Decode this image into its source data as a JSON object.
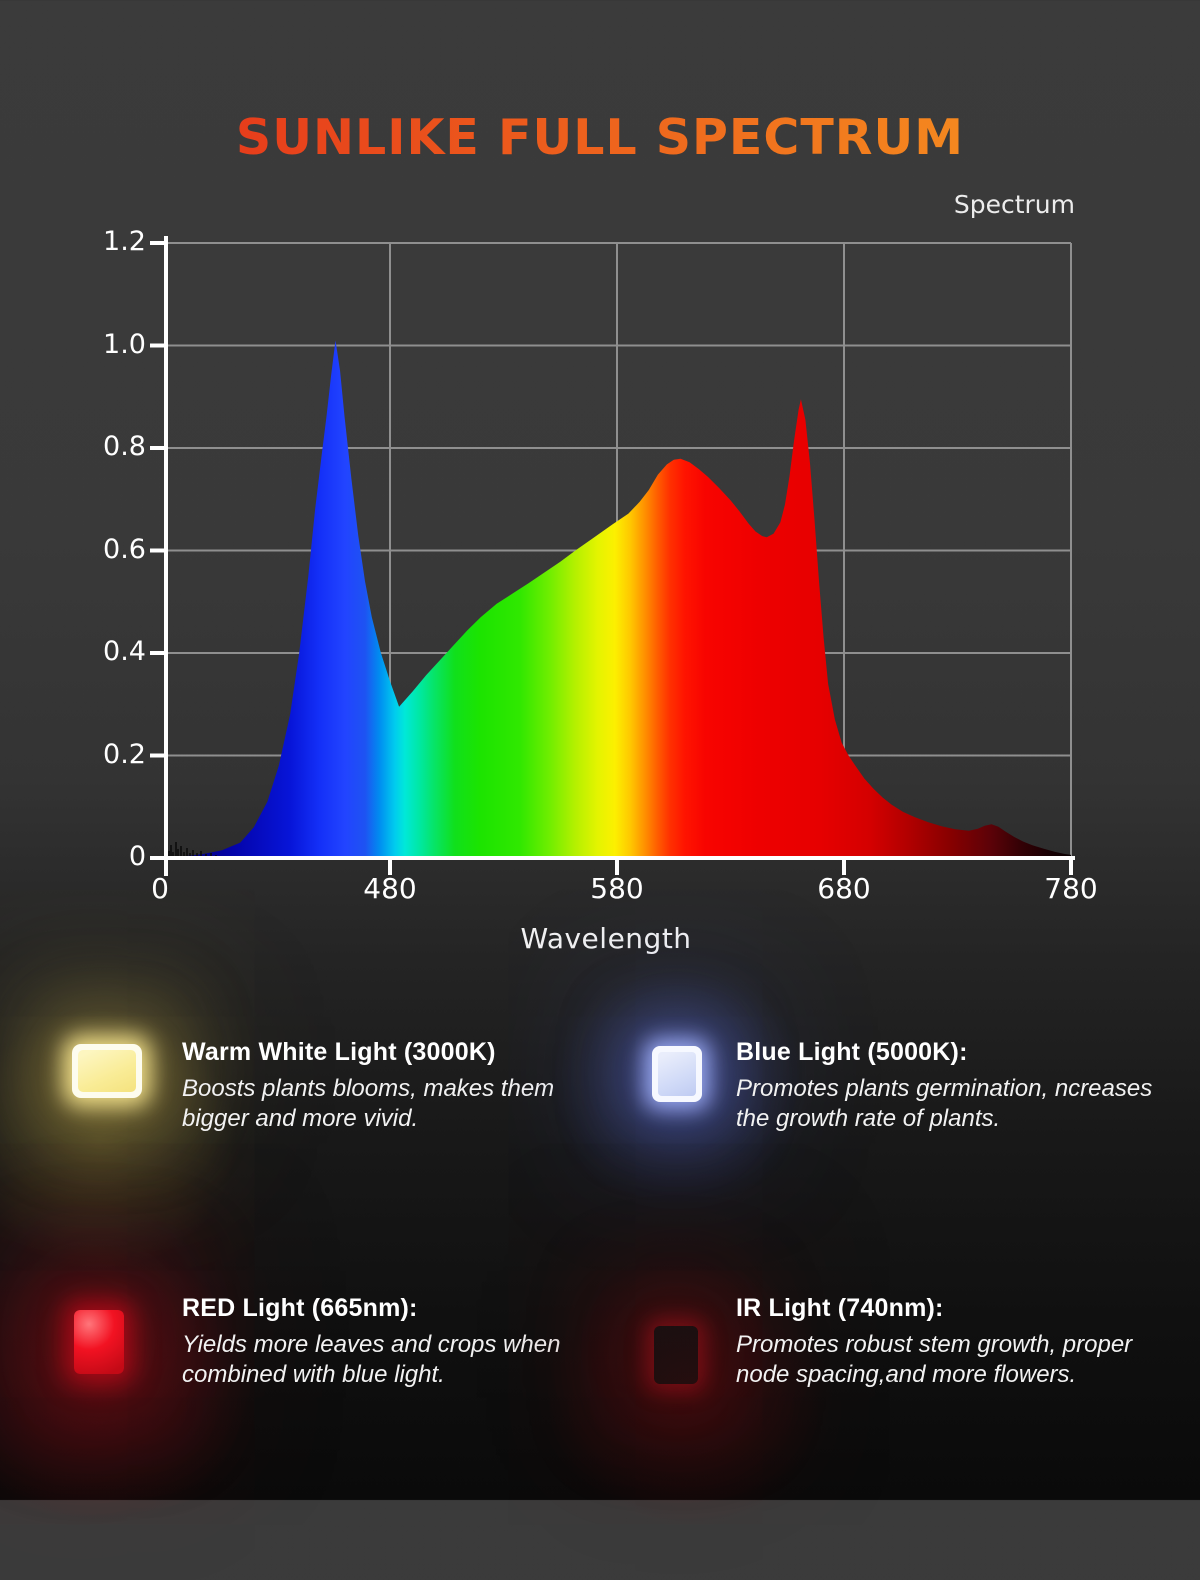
{
  "title": "SUNLIKE FULL SPECTRUM",
  "title_colors": {
    "left": "#e63b1b",
    "right": "#f58a1f"
  },
  "chart": {
    "legend_label": "Spectrum",
    "x_axis_title": "Wavelength",
    "x_ticks": [
      {
        "label": "0",
        "nm": null
      },
      {
        "label": "480",
        "nm": 480
      },
      {
        "label": "580",
        "nm": 580
      },
      {
        "label": "680",
        "nm": 680
      },
      {
        "label": "780",
        "nm": 780
      }
    ],
    "y_ticks": [
      {
        "label": "0",
        "value": 0
      },
      {
        "label": "0.2",
        "value": 0.2
      },
      {
        "label": "0.4",
        "value": 0.4
      },
      {
        "label": "0.6",
        "value": 0.6
      },
      {
        "label": "0.8",
        "value": 0.8
      },
      {
        "label": "1.0",
        "value": 1.0
      },
      {
        "label": "1.2",
        "value": 1.2
      }
    ]
  },
  "chart_data": {
    "type": "area",
    "title": "Spectrum",
    "xlabel": "Wavelength",
    "x_unit": "nm",
    "xlim": [
      380,
      780
    ],
    "ylim": [
      0,
      1.2
    ],
    "grid": true,
    "legend_position": "top-right",
    "x": [
      381,
      390,
      398,
      406,
      414,
      420,
      426,
      431,
      436,
      440,
      444,
      447,
      450,
      452,
      454,
      456,
      458,
      460,
      463,
      466,
      469,
      472,
      476,
      480,
      484,
      490,
      496,
      502,
      508,
      514,
      520,
      527,
      534,
      541,
      548,
      555,
      562,
      570,
      578,
      585,
      590,
      594,
      598,
      602,
      605,
      608,
      612,
      616,
      620,
      625,
      630,
      634,
      638,
      641,
      644,
      646,
      649,
      652,
      654,
      656,
      658,
      660,
      661,
      663,
      665,
      667,
      669,
      671,
      673,
      676,
      679,
      682,
      685,
      689,
      693,
      697,
      701,
      706,
      711,
      717,
      723,
      729,
      735,
      739,
      742,
      745,
      748,
      751,
      755,
      759,
      763,
      768,
      773,
      777,
      780
    ],
    "y": [
      0.002,
      0.004,
      0.008,
      0.015,
      0.03,
      0.06,
      0.11,
      0.18,
      0.28,
      0.4,
      0.55,
      0.68,
      0.79,
      0.86,
      0.94,
      1.01,
      0.95,
      0.86,
      0.74,
      0.63,
      0.54,
      0.47,
      0.4,
      0.345,
      0.295,
      0.325,
      0.357,
      0.386,
      0.415,
      0.444,
      0.47,
      0.496,
      0.516,
      0.536,
      0.557,
      0.578,
      0.601,
      0.626,
      0.651,
      0.672,
      0.695,
      0.718,
      0.748,
      0.768,
      0.777,
      0.779,
      0.772,
      0.759,
      0.744,
      0.722,
      0.698,
      0.676,
      0.652,
      0.637,
      0.628,
      0.626,
      0.633,
      0.655,
      0.69,
      0.745,
      0.815,
      0.875,
      0.895,
      0.855,
      0.77,
      0.66,
      0.54,
      0.43,
      0.34,
      0.27,
      0.225,
      0.2,
      0.18,
      0.155,
      0.135,
      0.118,
      0.104,
      0.09,
      0.08,
      0.07,
      0.062,
      0.056,
      0.053,
      0.057,
      0.063,
      0.066,
      0.061,
      0.052,
      0.041,
      0.032,
      0.025,
      0.018,
      0.012,
      0.008,
      0.006
    ],
    "peaks": {
      "blue_peak": {
        "nm": 455,
        "value": 1.0
      },
      "broad_peak": {
        "nm": 600,
        "value": 0.78
      },
      "red_peak": {
        "nm": 660,
        "value": 0.9
      },
      "dip_cyan": {
        "nm": 485,
        "value": 0.29
      },
      "dip_red": {
        "nm": 645,
        "value": 0.62
      },
      "ir_bump": {
        "nm": 745,
        "value": 0.07
      }
    },
    "color_stops": [
      {
        "pos": 0.0,
        "color": "#020060"
      },
      {
        "pos": 0.071,
        "color": "#0403a8"
      },
      {
        "pos": 0.137,
        "color": "#0715d8"
      },
      {
        "pos": 0.17,
        "color": "#1430f8"
      },
      {
        "pos": 0.198,
        "color": "#2244ff"
      },
      {
        "pos": 0.22,
        "color": "#1e53f2"
      },
      {
        "pos": 0.236,
        "color": "#008df0"
      },
      {
        "pos": 0.253,
        "color": "#00ccee"
      },
      {
        "pos": 0.264,
        "color": "#00e8d8"
      },
      {
        "pos": 0.281,
        "color": "#00e8a0"
      },
      {
        "pos": 0.297,
        "color": "#07e465"
      },
      {
        "pos": 0.319,
        "color": "#10e01c"
      },
      {
        "pos": 0.347,
        "color": "#1ce400"
      },
      {
        "pos": 0.391,
        "color": "#30e800"
      },
      {
        "pos": 0.424,
        "color": "#70ee00"
      },
      {
        "pos": 0.452,
        "color": "#b4f000"
      },
      {
        "pos": 0.477,
        "color": "#e4f400"
      },
      {
        "pos": 0.496,
        "color": "#fcf000"
      },
      {
        "pos": 0.513,
        "color": "#ffc800"
      },
      {
        "pos": 0.529,
        "color": "#ff9000"
      },
      {
        "pos": 0.544,
        "color": "#ff5a00"
      },
      {
        "pos": 0.557,
        "color": "#ff3000"
      },
      {
        "pos": 0.573,
        "color": "#ff1400"
      },
      {
        "pos": 0.596,
        "color": "#f80400"
      },
      {
        "pos": 0.656,
        "color": "#ee0000"
      },
      {
        "pos": 0.723,
        "color": "#e60000"
      },
      {
        "pos": 0.778,
        "color": "#d40000"
      },
      {
        "pos": 0.822,
        "color": "#b00000"
      },
      {
        "pos": 0.866,
        "color": "#880000"
      },
      {
        "pos": 0.911,
        "color": "#5c0208"
      },
      {
        "pos": 0.944,
        "color": "#340105"
      },
      {
        "pos": 0.977,
        "color": "#180003"
      },
      {
        "pos": 1.0,
        "color": "#0a0002"
      }
    ]
  },
  "features": [
    {
      "title": "Warm White Light (3000K)",
      "desc": "Boosts plants blooms, makes them\nbigger and more vivid.",
      "chip": "warm-white"
    },
    {
      "title": "Blue Light (5000K):",
      "desc": "Promotes plants germination, ncreases\nthe growth rate of plants.",
      "chip": "blue"
    },
    {
      "title": "RED Light (665nm):",
      "desc": "Yields more leaves and crops when\ncombined with blue light.",
      "chip": "red"
    },
    {
      "title": "IR Light (740nm):",
      "desc": "Promotes robust stem growth, proper\nnode spacing,and more flowers.",
      "chip": "ir"
    }
  ]
}
